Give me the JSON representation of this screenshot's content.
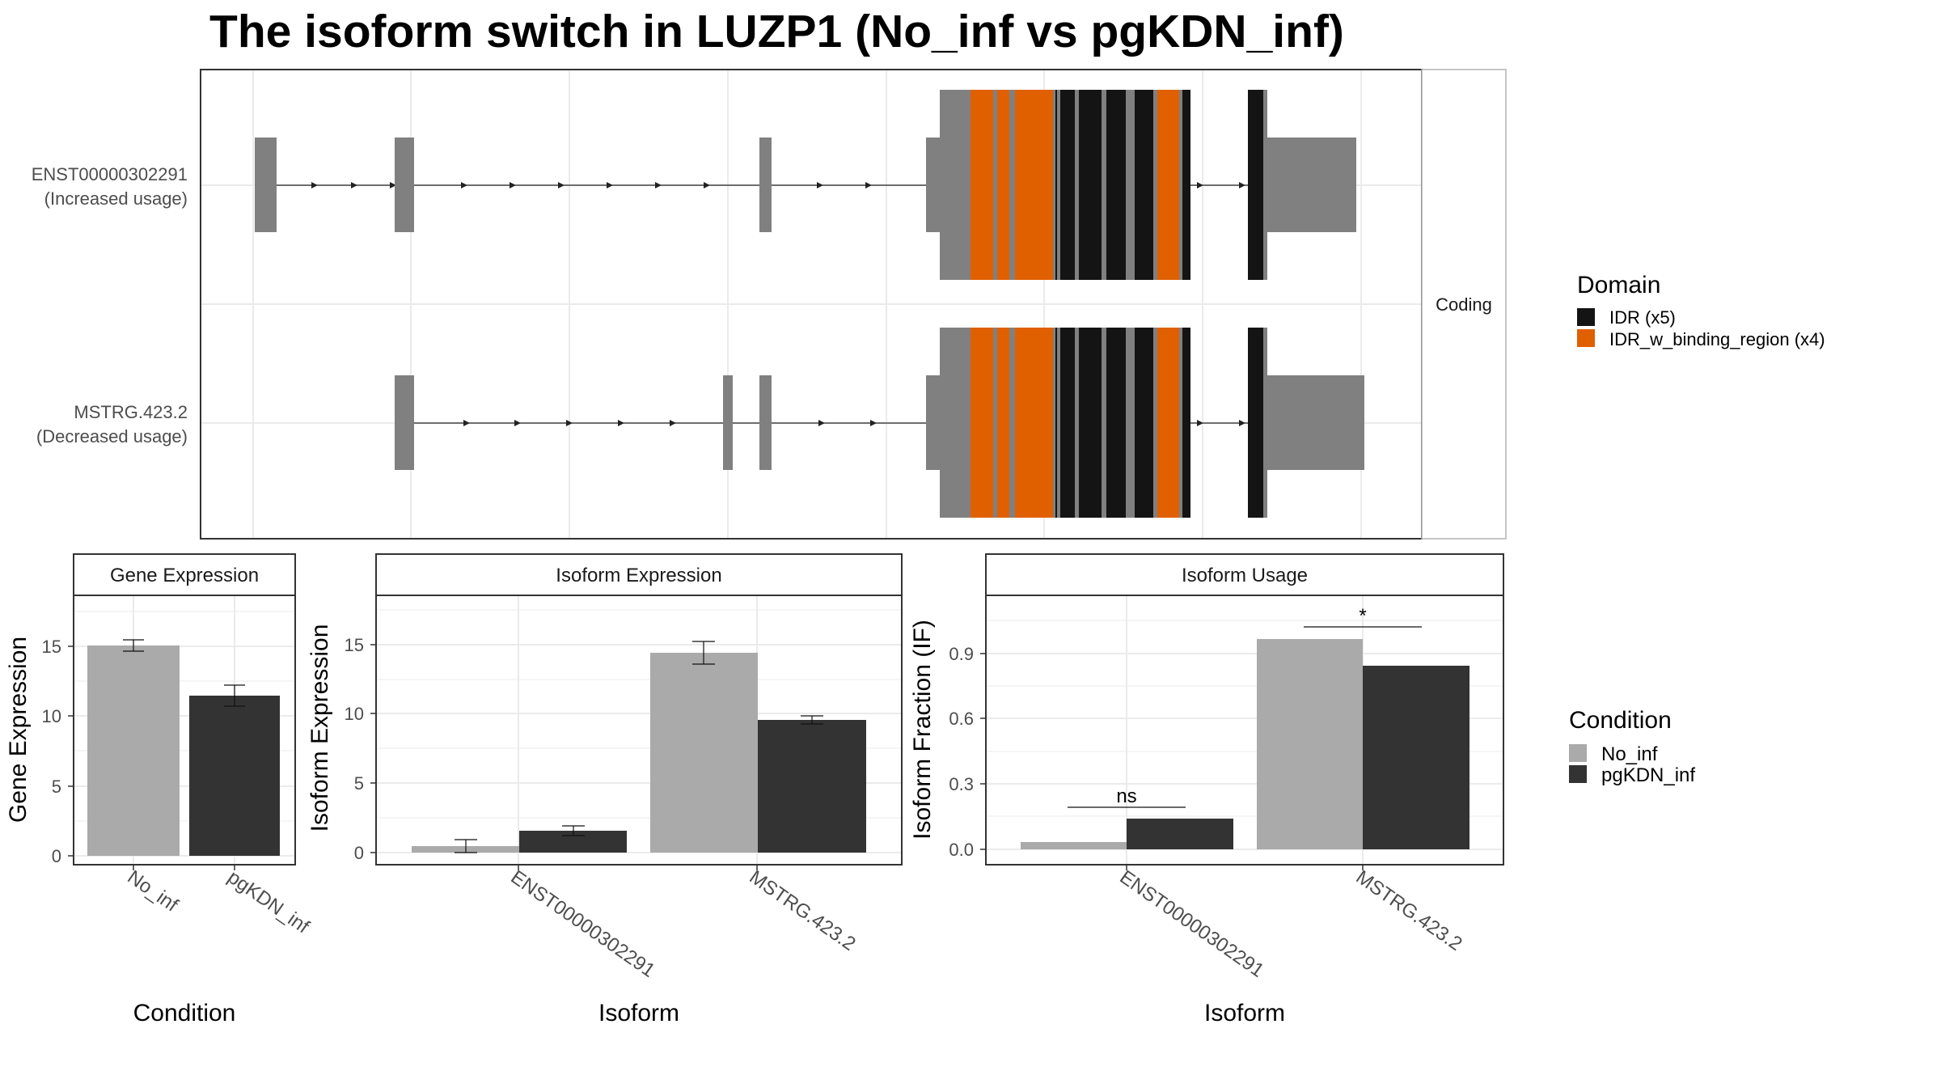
{
  "title": "The isoform switch in LUZP1 (No_inf vs pgKDN_inf)",
  "colors": {
    "exon": "#808080",
    "idr": "#141414",
    "idr_binding": "#e06000",
    "no_inf": "#aaaaaa",
    "pgkdn_inf": "#333333",
    "grid": "#ebebeb"
  },
  "chart_data": [
    {
      "type": "gene-structure",
      "facet": "Coding",
      "tracks": [
        {
          "label_line1": "ENST00000302291",
          "label_line2": "(Increased usage)"
        },
        {
          "label_line1": "MSTRG.423.2",
          "label_line2": "(Decreased usage)"
        }
      ],
      "legend": {
        "title": "Domain",
        "items": [
          {
            "label": "IDR (x5)",
            "color": "#141414"
          },
          {
            "label": "IDR_w_binding_region (x4)",
            "color": "#e06000"
          }
        ]
      }
    },
    {
      "type": "bar",
      "strip": "Gene Expression",
      "xlabel": "Condition",
      "ylabel": "Gene Expression",
      "categories": [
        "No_inf",
        "pgKDN_inf"
      ],
      "values": [
        14.8,
        11.3
      ],
      "errors": [
        0.4,
        0.75
      ],
      "ylim": [
        -0.9,
        18.5
      ],
      "yticks": [
        "0",
        "5",
        "10",
        "15"
      ]
    },
    {
      "type": "bar",
      "strip": "Isoform Expression",
      "xlabel": "Isoform",
      "ylabel": "Isoform Expression",
      "categories": [
        "ENST00000302291",
        "MSTRG.423.2"
      ],
      "series": [
        {
          "name": "No_inf",
          "values": [
            0.5,
            14.4
          ],
          "errors": [
            0.45,
            0.8
          ]
        },
        {
          "name": "pgKDN_inf",
          "values": [
            1.6,
            9.6
          ],
          "errors": [
            0.35,
            0.3
          ]
        }
      ],
      "ylim": [
        -0.9,
        18.5
      ],
      "yticks": [
        "0",
        "5",
        "10",
        "15"
      ]
    },
    {
      "type": "bar",
      "strip": "Isoform Usage",
      "xlabel": "Isoform",
      "ylabel": "Isoform Fraction (IF)",
      "categories": [
        "ENST00000302291",
        "MSTRG.423.2"
      ],
      "series": [
        {
          "name": "No_inf",
          "values": [
            0.035,
            0.965
          ]
        },
        {
          "name": "pgKDN_inf",
          "values": [
            0.14,
            0.845
          ]
        }
      ],
      "significance": [
        "ns",
        "*"
      ],
      "ylim": [
        -0.055,
        1.17
      ],
      "yticks": [
        "0.0",
        "0.3",
        "0.6",
        "0.9"
      ],
      "legend": {
        "title": "Condition",
        "items": [
          {
            "label": "No_inf",
            "color": "#aaaaaa"
          },
          {
            "label": "pgKDN_inf",
            "color": "#333333"
          }
        ]
      }
    }
  ]
}
